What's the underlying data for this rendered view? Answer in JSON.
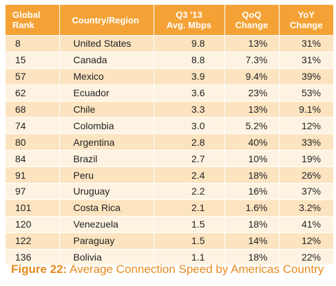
{
  "chart_data": {
    "type": "table",
    "columns": [
      {
        "key": "rank",
        "lines": [
          "Global",
          "Rank"
        ]
      },
      {
        "key": "country",
        "lines": [
          "Country/Region"
        ]
      },
      {
        "key": "speed",
        "lines": [
          "Q3 '13",
          "Avg. Mbps"
        ]
      },
      {
        "key": "qoq",
        "lines": [
          "QoQ",
          "Change"
        ]
      },
      {
        "key": "yoy",
        "lines": [
          "YoY",
          "Change"
        ]
      }
    ],
    "rows": [
      {
        "rank": "8",
        "country": "United States",
        "speed": "9.8",
        "qoq": "13%",
        "yoy": "31%"
      },
      {
        "rank": "15",
        "country": "Canada",
        "speed": "8.8",
        "qoq": "7.3%",
        "yoy": "31%"
      },
      {
        "rank": "57",
        "country": "Mexico",
        "speed": "3.9",
        "qoq": "9.4%",
        "yoy": "39%"
      },
      {
        "rank": "62",
        "country": "Ecuador",
        "speed": "3.6",
        "qoq": "23%",
        "yoy": "53%"
      },
      {
        "rank": "68",
        "country": "Chile",
        "speed": "3.3",
        "qoq": "13%",
        "yoy": "9.1%"
      },
      {
        "rank": "74",
        "country": "Colombia",
        "speed": "3.0",
        "qoq": "5.2%",
        "yoy": "12%"
      },
      {
        "rank": "80",
        "country": "Argentina",
        "speed": "2.8",
        "qoq": "40%",
        "yoy": "33%"
      },
      {
        "rank": "84",
        "country": "Brazil",
        "speed": "2.7",
        "qoq": "10%",
        "yoy": "19%"
      },
      {
        "rank": "91",
        "country": "Peru",
        "speed": "2.4",
        "qoq": "18%",
        "yoy": "26%"
      },
      {
        "rank": "97",
        "country": "Uruguay",
        "speed": "2.2",
        "qoq": "16%",
        "yoy": "37%"
      },
      {
        "rank": "101",
        "country": "Costa Rica",
        "speed": "2.1",
        "qoq": "1.6%",
        "yoy": "3.2%"
      },
      {
        "rank": "120",
        "country": "Venezuela",
        "speed": "1.5",
        "qoq": "18%",
        "yoy": "41%"
      },
      {
        "rank": "122",
        "country": "Paraguay",
        "speed": "1.5",
        "qoq": "14%",
        "yoy": "12%"
      },
      {
        "rank": "136",
        "country": "Bolivia",
        "speed": "1.1",
        "qoq": "18%",
        "yoy": "22%"
      }
    ],
    "caption_label": "Figure 22:",
    "caption_text": "Average Connection Speed by Americas Country",
    "colors": {
      "header": "#f4a236",
      "row_odd": "#fce4c0",
      "row_even": "#fef3e2",
      "caption": "#e8891d"
    }
  }
}
